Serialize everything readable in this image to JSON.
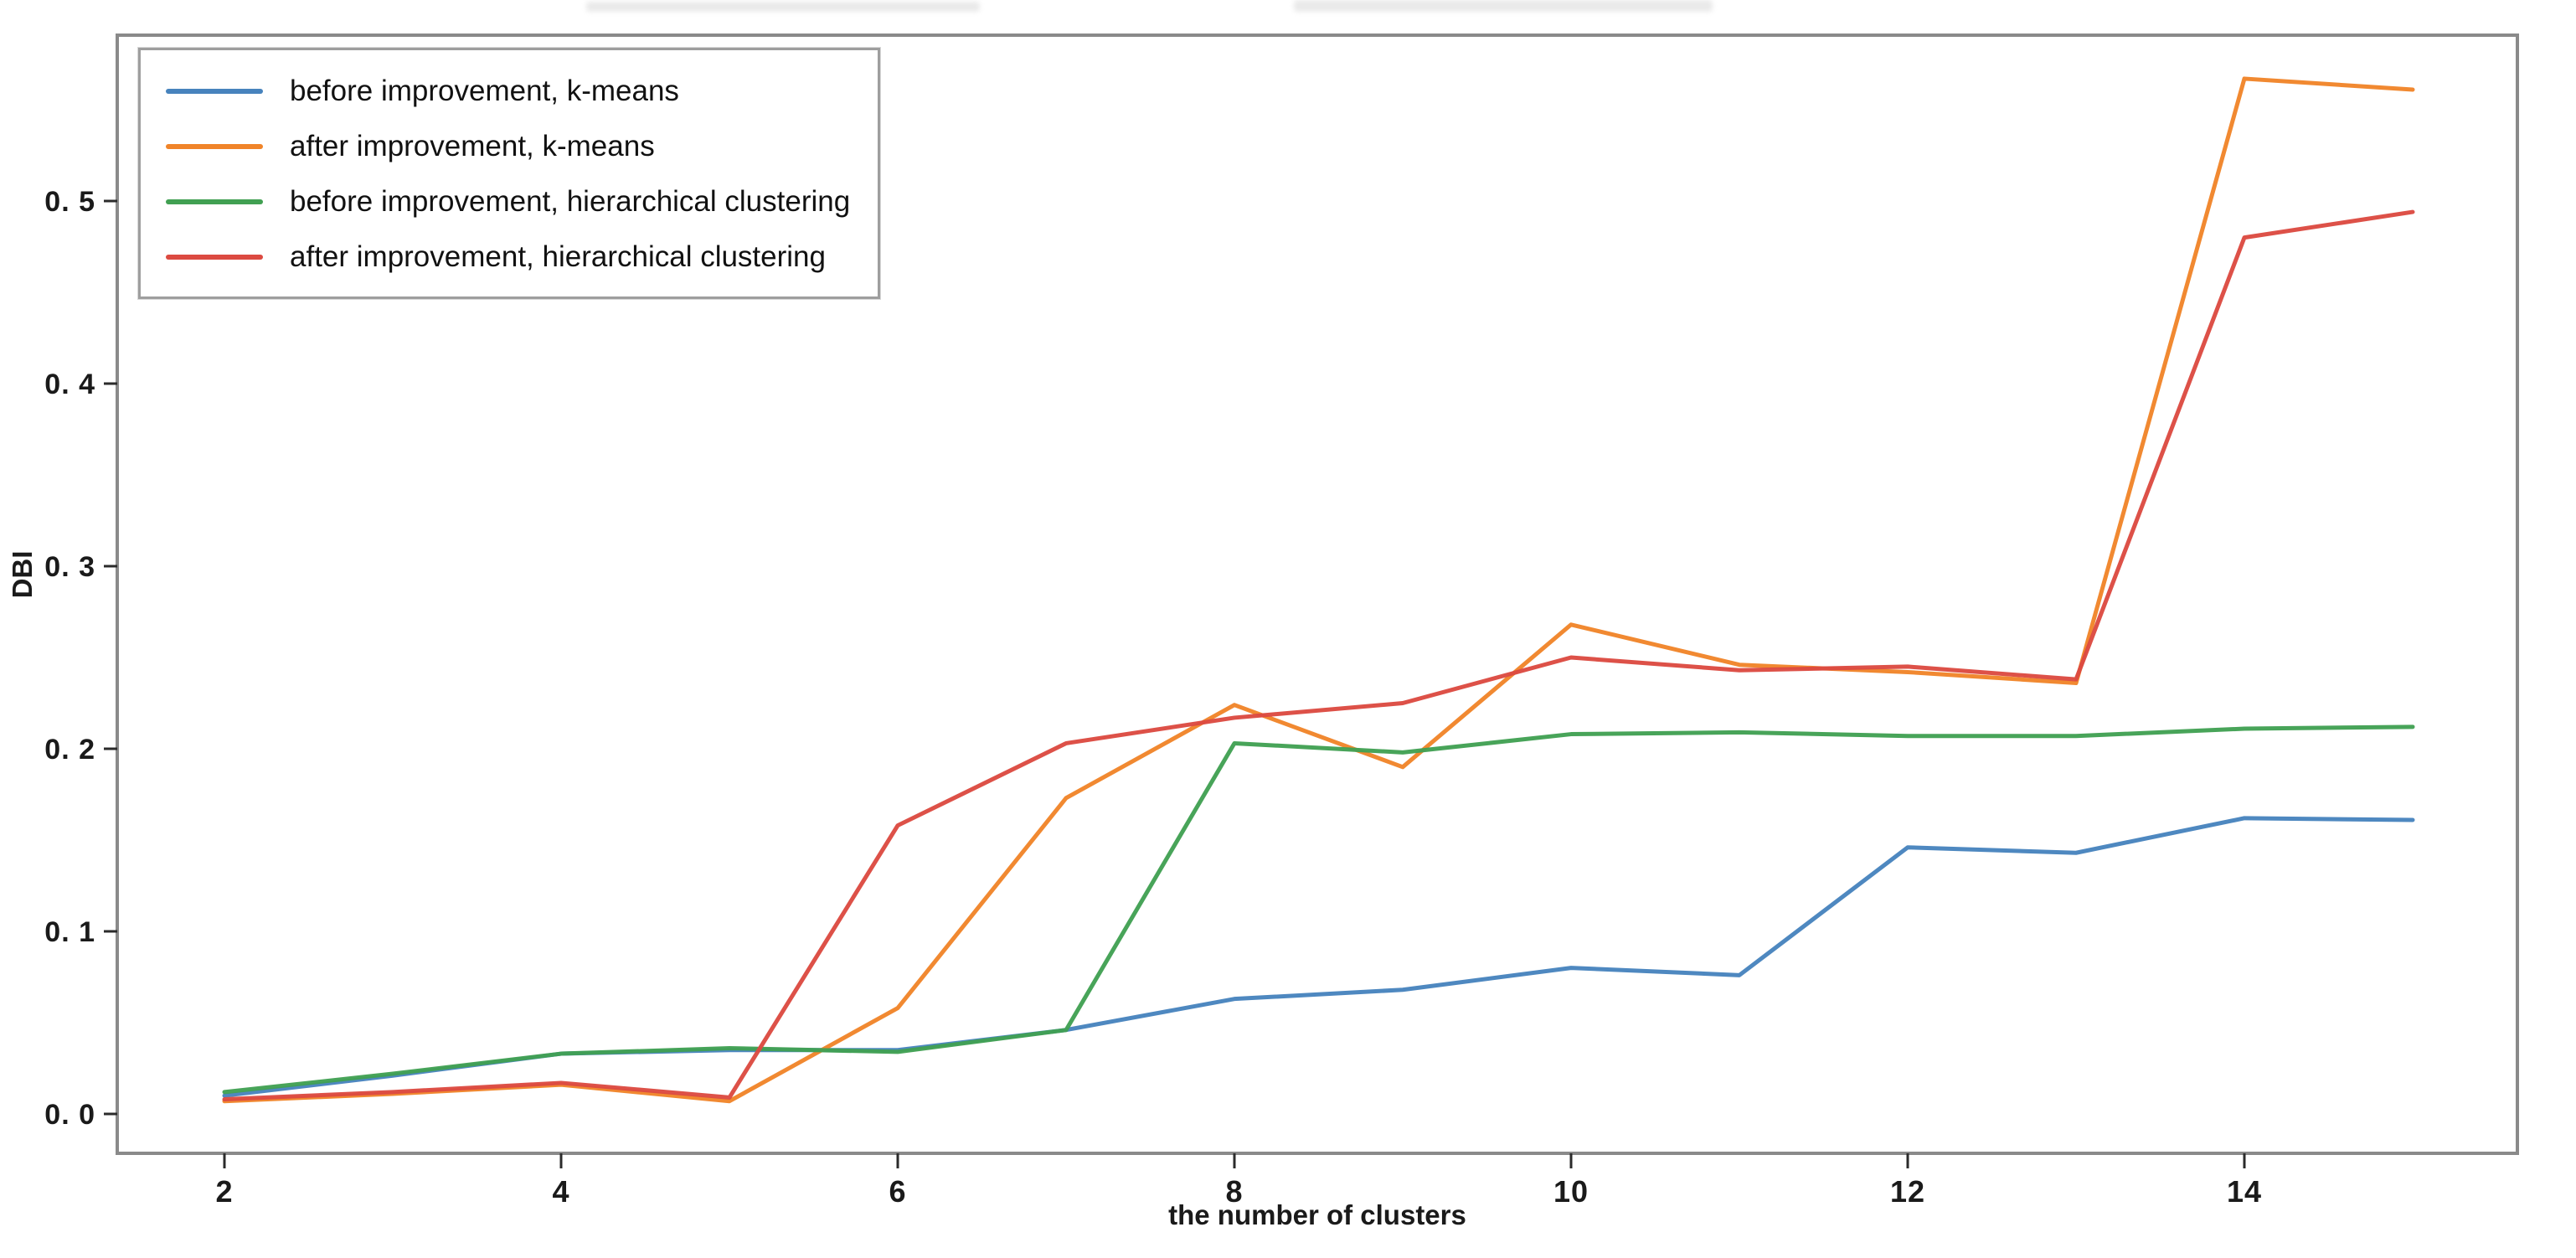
{
  "chart_data": {
    "type": "line",
    "title": "",
    "xlabel": "the number of clusters",
    "ylabel": "DBI",
    "x": [
      2,
      3,
      4,
      5,
      6,
      7,
      8,
      9,
      10,
      11,
      12,
      13,
      14,
      15
    ],
    "xlim": [
      1.36,
      15.62
    ],
    "ylim": [
      -0.022,
      0.591
    ],
    "grid": false,
    "legend_position": "upper-left",
    "xticks": {
      "values": [
        2,
        4,
        6,
        8,
        10,
        12,
        14
      ],
      "labels": [
        "2",
        "4",
        "6",
        "8",
        "10",
        "12",
        "14"
      ]
    },
    "yticks": {
      "values": [
        0.0,
        0.1,
        0.2,
        0.3,
        0.4,
        0.5
      ],
      "labels": [
        "0. 0",
        "0. 1",
        "0. 2",
        "0. 3",
        "0. 4",
        "0. 5"
      ]
    },
    "series": [
      {
        "name": "before improvement, k-means",
        "color": "#4783bd",
        "values": [
          0.01,
          0.021,
          0.033,
          0.035,
          0.035,
          0.046,
          0.063,
          0.068,
          0.08,
          0.076,
          0.146,
          0.143,
          0.162,
          0.161
        ]
      },
      {
        "name": "after improvement, k-means",
        "color": "#f08429",
        "values": [
          0.007,
          0.011,
          0.016,
          0.007,
          0.058,
          0.173,
          0.224,
          0.19,
          0.268,
          0.246,
          0.242,
          0.236,
          0.567,
          0.561
        ]
      },
      {
        "name": "before improvement, hierarchical clustering",
        "color": "#41a052",
        "values": [
          0.012,
          0.022,
          0.033,
          0.036,
          0.034,
          0.046,
          0.203,
          0.198,
          0.208,
          0.209,
          0.207,
          0.207,
          0.211,
          0.212
        ]
      },
      {
        "name": "after improvement, hierarchical clustering",
        "color": "#dc4a41",
        "values": [
          0.008,
          0.012,
          0.017,
          0.009,
          0.158,
          0.203,
          0.217,
          0.225,
          0.25,
          0.243,
          0.245,
          0.238,
          0.48,
          0.494
        ]
      }
    ]
  }
}
